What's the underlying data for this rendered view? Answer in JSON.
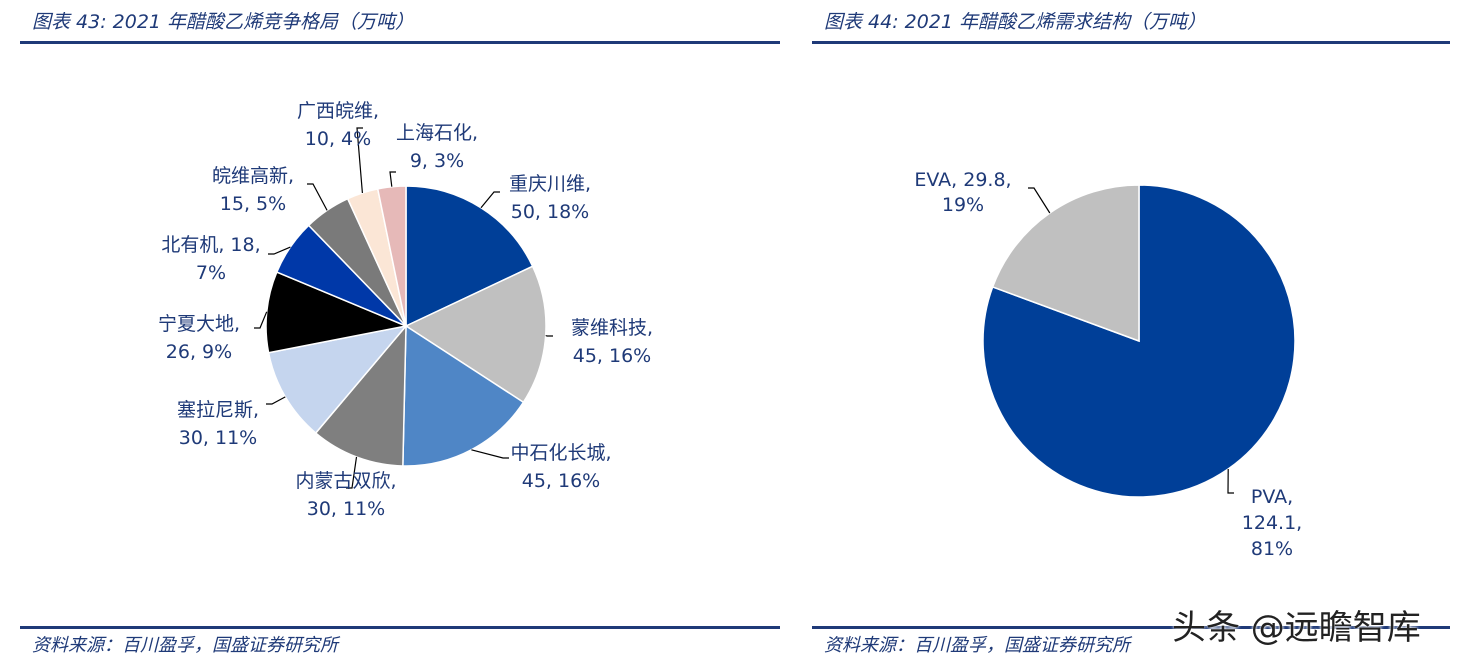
{
  "left": {
    "title": "图表 43:  2021 年醋酸乙烯竞争格局（万吨）",
    "source": "资料来源：百川盈孚，国盛证券研究所"
  },
  "right": {
    "title": "图表 44:  2021 年醋酸乙烯需求结构（万吨）",
    "source": "资料来源：百川盈孚，国盛证券研究所"
  },
  "watermark": "头条 @远瞻智库",
  "chart_data": [
    {
      "type": "pie",
      "title": "图表 43:  2021 年醋酸乙烯竞争格局（万吨）",
      "start": "12 o'clock, clockwise",
      "slices": [
        {
          "name": "重庆川维",
          "value": 50,
          "percent": "18%",
          "label_lines": [
            "重庆川维,",
            "50, 18%"
          ],
          "color": "#003f98"
        },
        {
          "name": "蒙维科技",
          "value": 45,
          "percent": "16%",
          "label_lines": [
            "蒙维科技,",
            "45, 16%"
          ],
          "color": "#c0c0c0"
        },
        {
          "name": "中石化长城",
          "value": 45,
          "percent": "16%",
          "label_lines": [
            "中石化长城,",
            "45, 16%"
          ],
          "color": "#4f86c6"
        },
        {
          "name": "内蒙古双欣",
          "value": 30,
          "percent": "11%",
          "label_lines": [
            "内蒙古双欣,",
            "30, 11%"
          ],
          "color": "#7f7f7f"
        },
        {
          "name": "塞拉尼斯",
          "value": 30,
          "percent": "11%",
          "label_lines": [
            "塞拉尼斯,",
            "30, 11%"
          ],
          "color": "#c5d5ee"
        },
        {
          "name": "宁夏大地",
          "value": 26,
          "percent": "9%",
          "label_lines": [
            "宁夏大地,",
            "26, 9%"
          ],
          "color": "#000000"
        },
        {
          "name": "北有机",
          "value": 18,
          "percent": "7%",
          "label_lines": [
            "北有机, 18,",
            "7%"
          ],
          "color": "#0038a8"
        },
        {
          "name": "皖维高新",
          "value": 15,
          "percent": "5%",
          "label_lines": [
            "皖维高新,",
            "15, 5%"
          ],
          "color": "#7a7a7a"
        },
        {
          "name": "广西皖维",
          "value": 10,
          "percent": "4%",
          "label_lines": [
            "广西皖维,",
            "10, 4%"
          ],
          "color": "#fbe6d6"
        },
        {
          "name": "上海石化",
          "value": 9,
          "percent": "3%",
          "label_lines": [
            "上海石化,",
            "9, 3%"
          ],
          "color": "#e6b9b8"
        }
      ]
    },
    {
      "type": "pie",
      "title": "图表 44:  2021 年醋酸乙烯需求结构（万吨）",
      "start": "12 o'clock, clockwise",
      "slices": [
        {
          "name": "PVA",
          "value": 124.1,
          "percent": "81%",
          "label_lines": [
            "PVA,",
            "124.1,",
            "81%"
          ],
          "color": "#003f98"
        },
        {
          "name": "EVA",
          "value": 29.8,
          "percent": "19%",
          "label_lines": [
            "EVA, 29.8,",
            "19%"
          ],
          "color": "#c0c0c0"
        }
      ]
    }
  ]
}
